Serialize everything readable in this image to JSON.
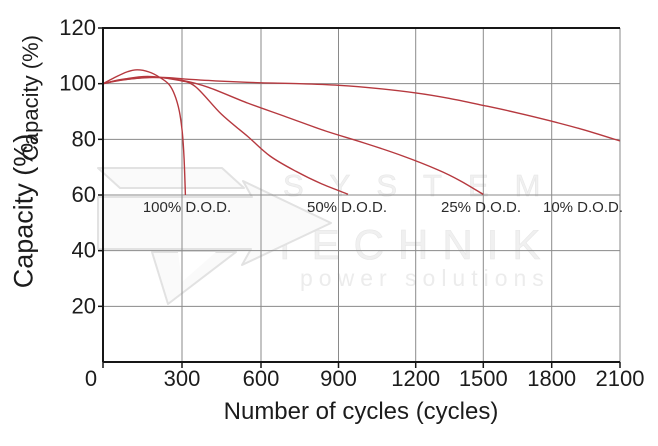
{
  "chart_data": {
    "type": "line",
    "title": "",
    "xlabel": "Number of cycles (cycles)",
    "ylabel": "Capacity (%)",
    "ylabel2": "Capacity (%)",
    "x_ticks": [
      0,
      300,
      600,
      900,
      1200,
      1500,
      1800,
      2100
    ],
    "y_ticks": [
      20,
      40,
      60,
      80,
      100,
      120
    ],
    "xlim": [
      0,
      2100
    ],
    "ylim": [
      0,
      120
    ],
    "grid": true,
    "legend_position": "inline-labels",
    "line_color": "#b6393f",
    "grid_color": "#8a8a8a",
    "axis_color": "#161616",
    "label_color": "#2b2b2b",
    "series": [
      {
        "name": "100% D.O.D.",
        "points": [
          [
            0,
            100
          ],
          [
            40,
            102
          ],
          [
            90,
            104.2
          ],
          [
            130,
            105
          ],
          [
            175,
            104.2
          ],
          [
            215,
            102.3
          ],
          [
            250,
            99.8
          ],
          [
            272,
            96
          ],
          [
            290,
            90
          ],
          [
            301,
            82.5
          ],
          [
            308,
            73
          ],
          [
            313,
            60
          ]
        ]
      },
      {
        "name": "50% D.O.D.",
        "points": [
          [
            0,
            100
          ],
          [
            70,
            101.5
          ],
          [
            170,
            102.6
          ],
          [
            280,
            101.3
          ],
          [
            350,
            99
          ],
          [
            450,
            89
          ],
          [
            550,
            81
          ],
          [
            635,
            74
          ],
          [
            735,
            68.5
          ],
          [
            835,
            64
          ],
          [
            937,
            60.3
          ]
        ]
      },
      {
        "name": "25% D.O.D.",
        "points": [
          [
            0,
            100
          ],
          [
            80,
            101.4
          ],
          [
            190,
            102.3
          ],
          [
            300,
            101.2
          ],
          [
            400,
            98.7
          ],
          [
            550,
            93
          ],
          [
            700,
            88
          ],
          [
            850,
            83
          ],
          [
            1000,
            78.7
          ],
          [
            1150,
            74
          ],
          [
            1300,
            69
          ],
          [
            1400,
            65
          ],
          [
            1500,
            60.2
          ]
        ]
      },
      {
        "name": "10% D.O.D.",
        "points": [
          [
            0,
            100
          ],
          [
            60,
            101.2
          ],
          [
            140,
            102
          ],
          [
            230,
            102.2
          ],
          [
            320,
            101.6
          ],
          [
            450,
            100.9
          ],
          [
            600,
            100.3
          ],
          [
            750,
            100
          ],
          [
            900,
            99.4
          ],
          [
            1050,
            98.3
          ],
          [
            1200,
            96.7
          ],
          [
            1350,
            94.7
          ],
          [
            1500,
            92.2
          ],
          [
            1650,
            89.5
          ],
          [
            1800,
            86.5
          ],
          [
            1950,
            83.2
          ],
          [
            2100,
            79.4
          ]
        ]
      }
    ]
  },
  "watermark": {
    "line1": "SYSTEM",
    "line2": "TECHNIK",
    "line3": "power solutions"
  }
}
